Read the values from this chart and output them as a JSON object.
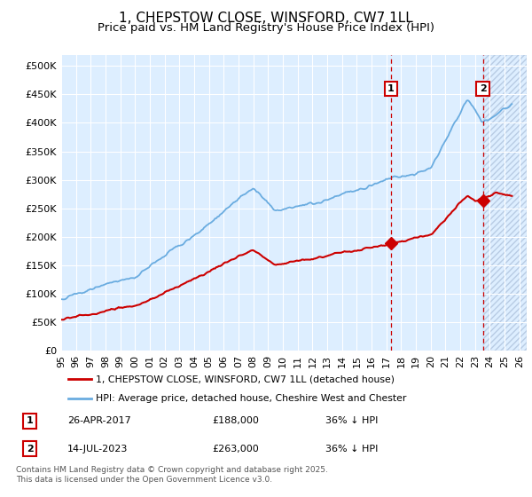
{
  "title": "1, CHEPSTOW CLOSE, WINSFORD, CW7 1LL",
  "subtitle": "Price paid vs. HM Land Registry's House Price Index (HPI)",
  "ylabel_ticks": [
    "£0",
    "£50K",
    "£100K",
    "£150K",
    "£200K",
    "£250K",
    "£300K",
    "£350K",
    "£400K",
    "£450K",
    "£500K"
  ],
  "ytick_values": [
    0,
    50000,
    100000,
    150000,
    200000,
    250000,
    300000,
    350000,
    400000,
    450000,
    500000
  ],
  "ylim": [
    0,
    520000
  ],
  "xlim_start": 1995.0,
  "xlim_end": 2026.5,
  "hpi_color": "#6aace0",
  "price_color": "#cc0000",
  "vline_color": "#cc0000",
  "bg_color": "#ffffff",
  "plot_bg_color": "#ddeeff",
  "hatch_color": "#c8ddf0",
  "legend_label_red": "1, CHEPSTOW CLOSE, WINSFORD, CW7 1LL (detached house)",
  "legend_label_blue": "HPI: Average price, detached house, Cheshire West and Chester",
  "sale1_x": 2017.32,
  "sale1_y": 188000,
  "sale1_label": "1",
  "sale2_x": 2023.54,
  "sale2_y": 263000,
  "sale2_label": "2",
  "footer": "Contains HM Land Registry data © Crown copyright and database right 2025.\nThis data is licensed under the Open Government Licence v3.0.",
  "title_fontsize": 11,
  "subtitle_fontsize": 9.5,
  "tick_fontsize": 8
}
